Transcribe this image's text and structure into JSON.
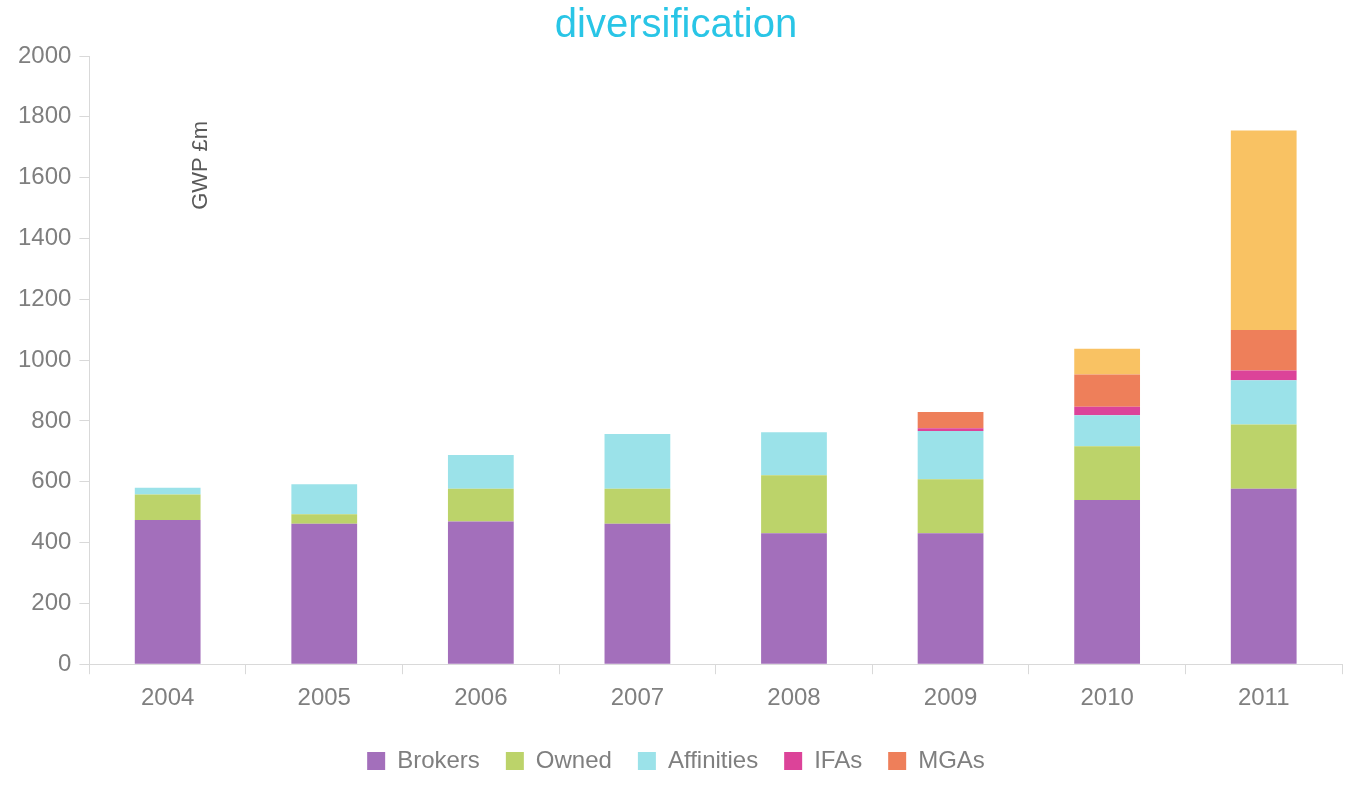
{
  "chart_data": {
    "type": "bar",
    "title": "diversification",
    "ylabel": "GWP £m",
    "stacked": true,
    "categories": [
      "2004",
      "2005",
      "2006",
      "2007",
      "2008",
      "2009",
      "2010",
      "2011"
    ],
    "series": [
      {
        "name": "Brokers",
        "color": "#a36fbb",
        "values": [
          474,
          462,
          469,
          462,
          431,
          431,
          540,
          577
        ]
      },
      {
        "name": "Owned",
        "color": "#bcd36a",
        "values": [
          84,
          31,
          108,
          115,
          190,
          177,
          177,
          211
        ]
      },
      {
        "name": "Affinities",
        "color": "#9be2e9",
        "values": [
          22,
          99,
          111,
          180,
          142,
          159,
          102,
          146
        ]
      },
      {
        "name": "IFAs",
        "color": "#dc4399",
        "values": [
          null,
          null,
          null,
          null,
          null,
          9,
          28,
          32
        ]
      },
      {
        "name": "MGAs",
        "color": "#ee7f5a",
        "values": [
          null,
          null,
          null,
          null,
          null,
          53,
          106,
          133
        ]
      },
      {
        "color": "#f9c263",
        "values": [
          null,
          null,
          null,
          null,
          null,
          null,
          84,
          656
        ]
      }
    ],
    "ylim": [
      0,
      2000
    ],
    "yticks": [
      0,
      200,
      400,
      600,
      800,
      1000,
      1200,
      1400,
      1600,
      1800,
      2000
    ],
    "grid": false,
    "legend": "bottom"
  }
}
